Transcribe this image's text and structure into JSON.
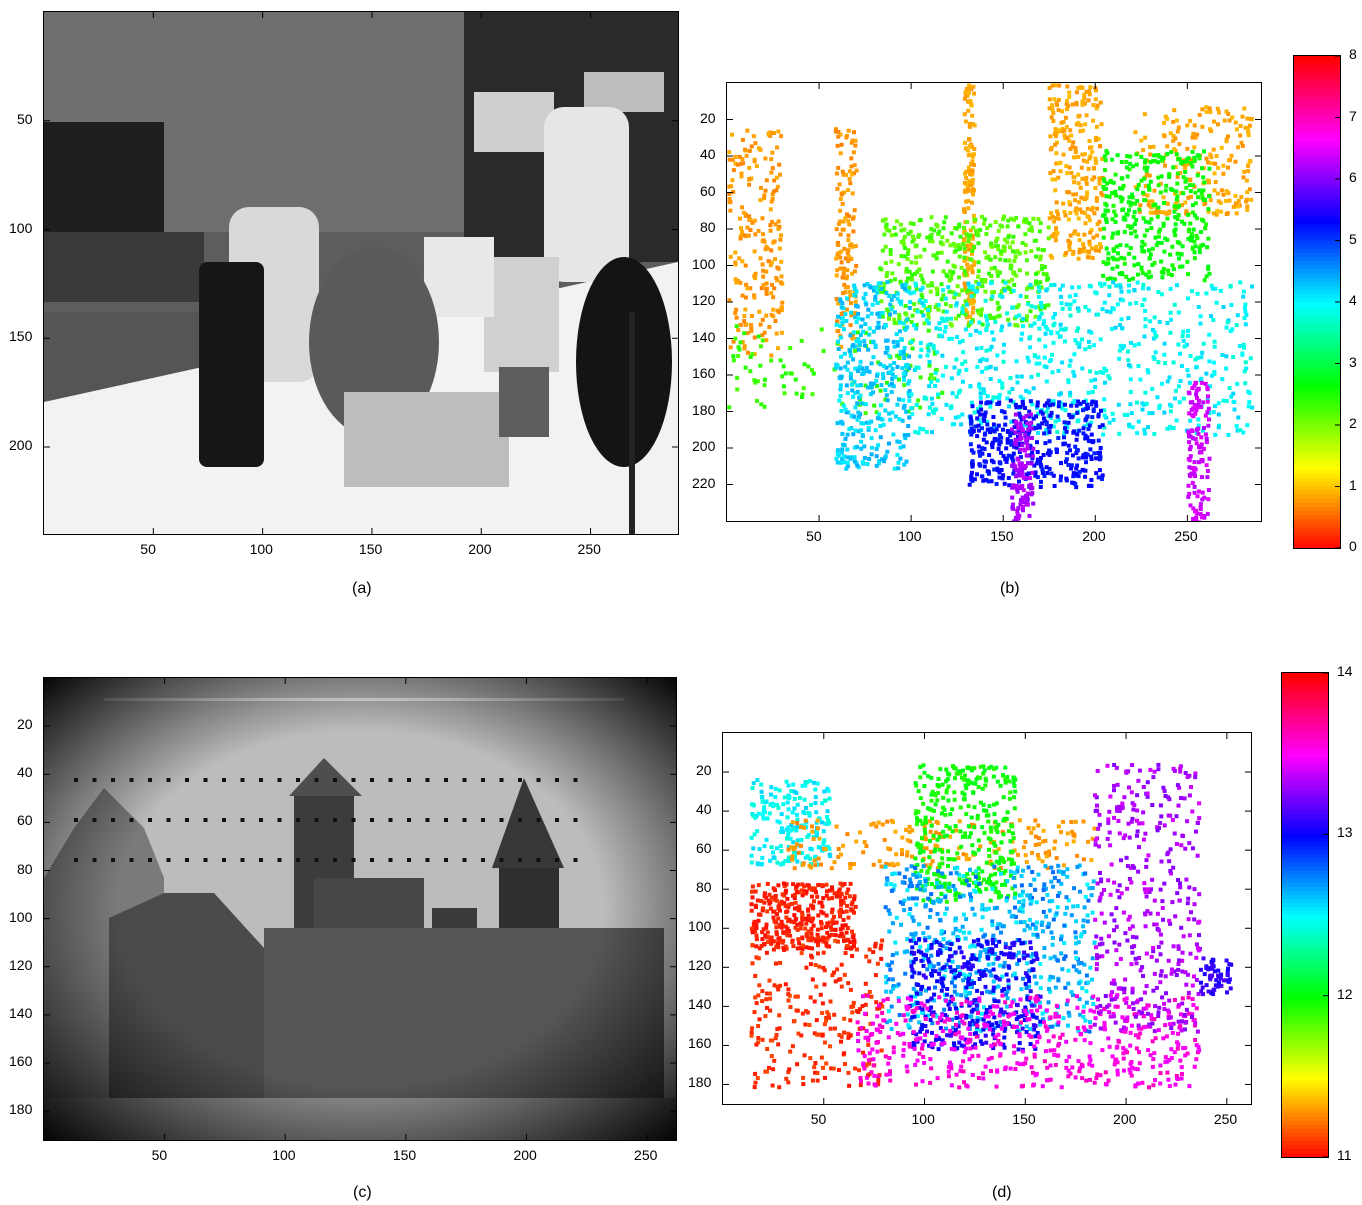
{
  "chart_data": [
    {
      "type": "heatmap",
      "caption": "(a)",
      "content": "grayscale photo",
      "xticks": [
        50,
        100,
        150,
        200,
        250
      ],
      "yticks": [
        50,
        100,
        150,
        200
      ],
      "xlim": [
        0,
        290
      ],
      "ylim": [
        0,
        240
      ],
      "grid": false
    },
    {
      "type": "heatmap",
      "caption": "(b)",
      "content": "sparse disparity map",
      "xticks": [
        50,
        100,
        150,
        200,
        250
      ],
      "yticks": [
        20,
        40,
        60,
        80,
        100,
        120,
        140,
        160,
        180,
        200,
        220
      ],
      "xlim": [
        0,
        290
      ],
      "ylim": [
        0,
        240
      ],
      "colorbar": {
        "ticks": [
          0,
          1,
          2,
          3,
          4,
          5,
          6,
          7,
          8
        ],
        "range": [
          0,
          8
        ]
      },
      "grid": false
    },
    {
      "type": "heatmap",
      "caption": "(c)",
      "content": "grayscale photo",
      "xticks": [
        50,
        100,
        150,
        200,
        250
      ],
      "yticks": [
        20,
        40,
        60,
        80,
        100,
        120,
        140,
        160,
        180
      ],
      "xlim": [
        0,
        262
      ],
      "ylim": [
        0,
        192
      ],
      "grid": false
    },
    {
      "type": "heatmap",
      "caption": "(d)",
      "content": "sparse disparity map",
      "xticks": [
        50,
        100,
        150,
        200,
        250
      ],
      "yticks": [
        20,
        40,
        60,
        80,
        100,
        120,
        140,
        160,
        180
      ],
      "xlim": [
        0,
        262
      ],
      "ylim": [
        0,
        190
      ],
      "colorbar": {
        "ticks": [
          11,
          12,
          13,
          14
        ],
        "range": [
          11,
          14
        ]
      },
      "grid": false
    }
  ],
  "colors": {
    "colormap": [
      "#ff0000",
      "#ff8c00",
      "#ffd700",
      "#00ff00",
      "#00ffff",
      "#0000ff",
      "#ff00ff",
      "#ff0000"
    ]
  }
}
